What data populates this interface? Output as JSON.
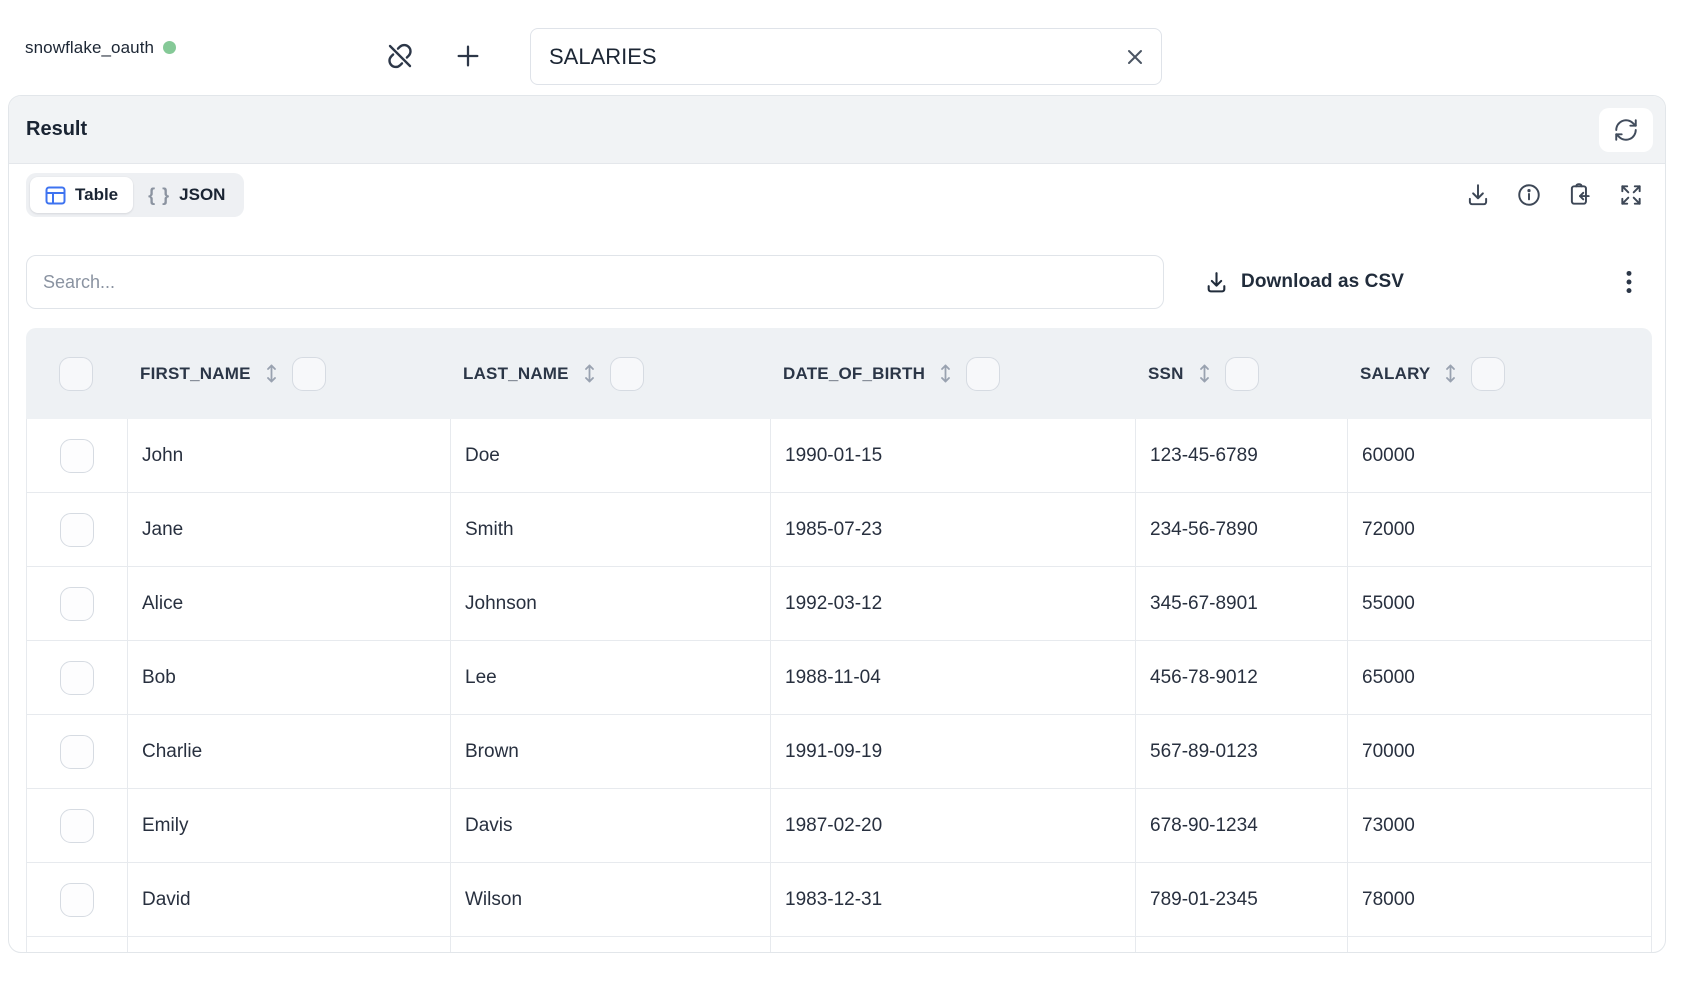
{
  "topbar": {
    "connection_name": "snowflake_oauth",
    "status_color": "#85c997",
    "table_name_value": "SALARIES"
  },
  "result": {
    "title": "Result",
    "tabs": {
      "table_label": "Table",
      "json_label": "JSON",
      "json_braces": "{ }"
    },
    "search_placeholder": "Search...",
    "download_csv_label": "Download as CSV",
    "accent_blue": "#3e73f0"
  },
  "table": {
    "columns": [
      "FIRST_NAME",
      "LAST_NAME",
      "DATE_OF_BIRTH",
      "SSN",
      "SALARY"
    ],
    "rows": [
      [
        "John",
        "Doe",
        "1990-01-15",
        "123-45-6789",
        "60000"
      ],
      [
        "Jane",
        "Smith",
        "1985-07-23",
        "234-56-7890",
        "72000"
      ],
      [
        "Alice",
        "Johnson",
        "1992-03-12",
        "345-67-8901",
        "55000"
      ],
      [
        "Bob",
        "Lee",
        "1988-11-04",
        "456-78-9012",
        "65000"
      ],
      [
        "Charlie",
        "Brown",
        "1991-09-19",
        "567-89-0123",
        "70000"
      ],
      [
        "Emily",
        "Davis",
        "1987-02-20",
        "678-90-1234",
        "73000"
      ],
      [
        "David",
        "Wilson",
        "1983-12-31",
        "789-01-2345",
        "78000"
      ]
    ]
  }
}
